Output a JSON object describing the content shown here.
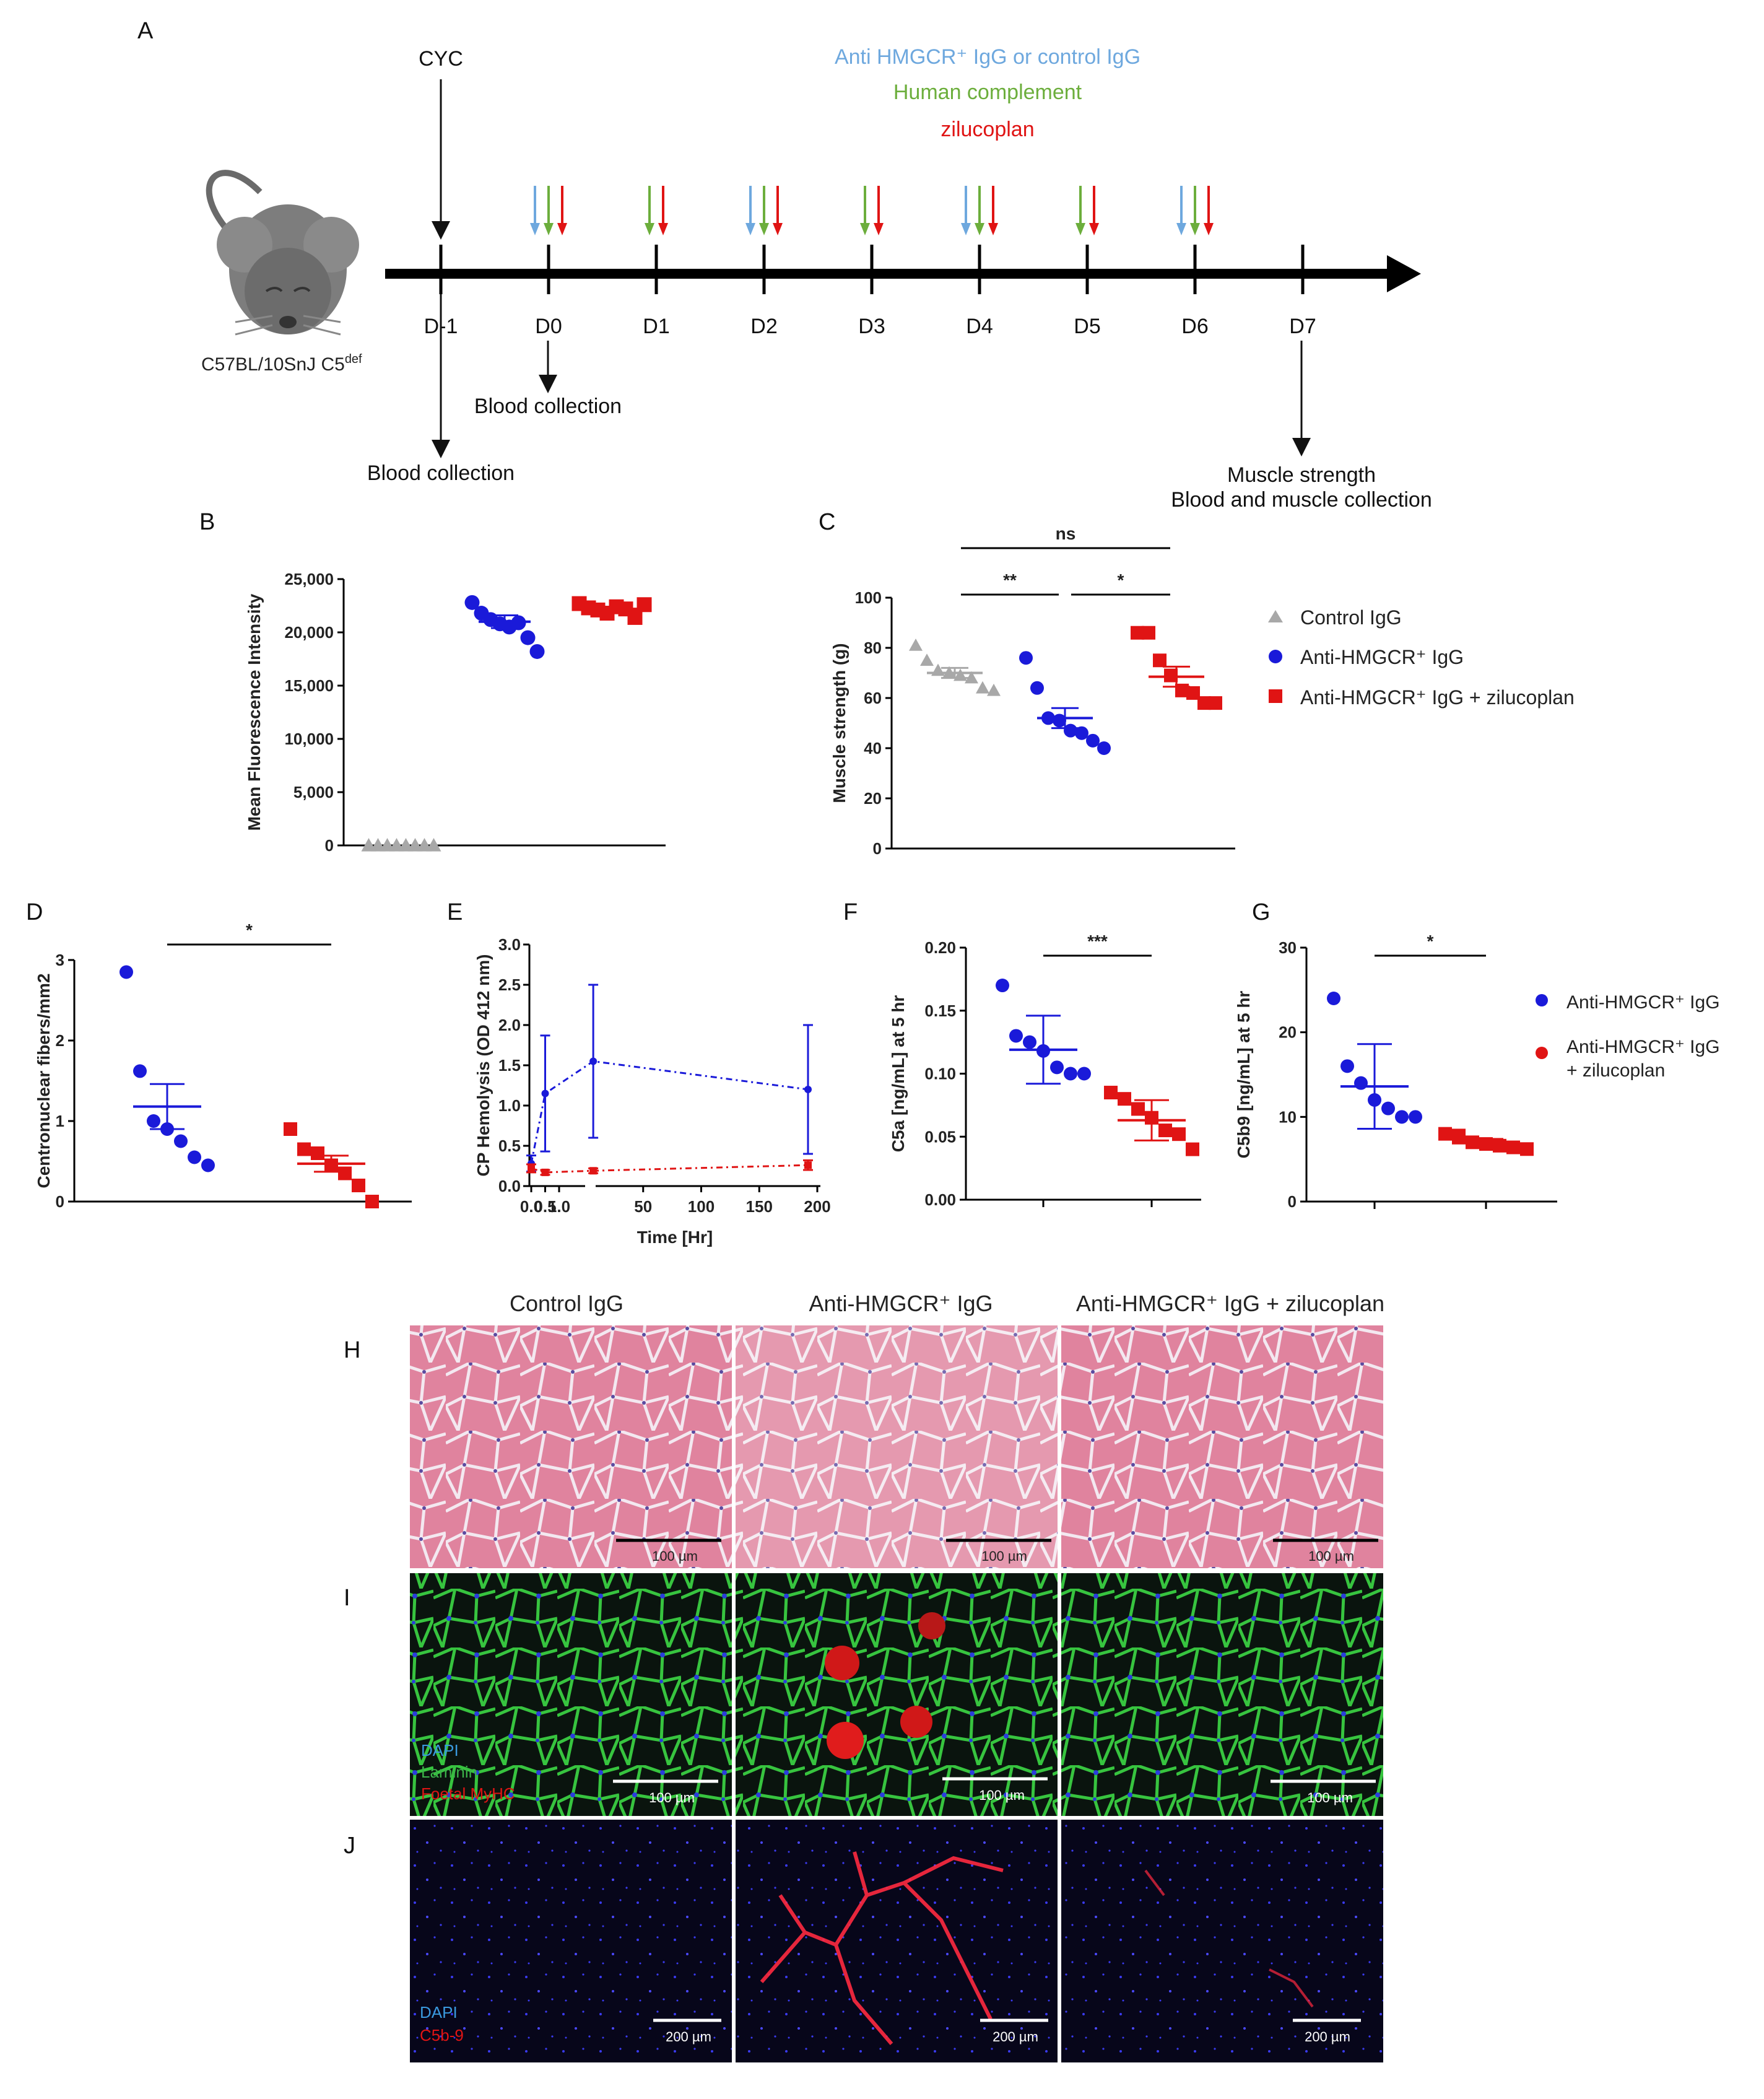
{
  "colors": {
    "control": "#a8a8a8",
    "anti": "#1a1ad9",
    "zilu": "#e01414",
    "ant_arrow": "#6ea8de",
    "comp_arrow": "#6cae3c",
    "zilu_arrow": "#e01414"
  },
  "panelA": {
    "label": "A",
    "strain": "C57BL/10SnJ C5",
    "strain_sup": "def",
    "cyc": "CYC",
    "legend": [
      "Anti HMGCR⁺ IgG or control IgG",
      "Human complement",
      "zilucoplan"
    ],
    "days": [
      "D-1",
      "D0",
      "D1",
      "D2",
      "D3",
      "D4",
      "D5",
      "D6",
      "D7"
    ],
    "injections": [
      [],
      [
        "ab",
        "comp",
        "zilu"
      ],
      [
        "comp",
        "zilu"
      ],
      [
        "ab",
        "comp",
        "zilu"
      ],
      [
        "comp",
        "zilu"
      ],
      [
        "ab",
        "comp",
        "zilu"
      ],
      [
        "comp",
        "zilu"
      ],
      [
        "ab",
        "comp",
        "zilu"
      ],
      []
    ],
    "blood_dm1": "Blood collection",
    "blood_d0": "Blood collection",
    "end1": "Muscle strength",
    "end2": "Blood and muscle collection"
  },
  "chart_data": [
    {
      "panel": "B",
      "type": "scatter",
      "ylabel": "Mean Fluorescence Intensity",
      "ylim": [
        0,
        25000
      ],
      "yticks": [
        "0",
        "5,000",
        "10,000",
        "15,000",
        "20,000",
        "25,000"
      ],
      "groups": [
        {
          "name": "Control IgG",
          "values": [
            0,
            0,
            0,
            0,
            0,
            0,
            0,
            0
          ],
          "mean": 0,
          "sem": 0
        },
        {
          "name": "Anti-HMGCR+ IgG",
          "values": [
            22800,
            21800,
            21200,
            20800,
            20500,
            20900,
            19500,
            18200
          ],
          "mean": 21000,
          "sem": 600
        },
        {
          "name": "Anti-HMGCR+ IgG + zilucoplan",
          "values": [
            22700,
            22300,
            22100,
            21800,
            22400,
            22200,
            21400,
            22600
          ],
          "mean": 22200,
          "sem": 200
        }
      ]
    },
    {
      "panel": "C",
      "type": "scatter",
      "ylabel": "Muscle strength (g)",
      "ylim": [
        0,
        100
      ],
      "yticks": [
        "0",
        "20",
        "40",
        "60",
        "80",
        "100"
      ],
      "groups": [
        {
          "name": "Control IgG",
          "values": [
            81,
            75,
            71,
            70,
            69,
            68,
            64,
            63
          ],
          "mean": 70,
          "sem": 2
        },
        {
          "name": "Anti-HMGCR+ IgG",
          "values": [
            76,
            64,
            52,
            51,
            47,
            46,
            43,
            40
          ],
          "mean": 52,
          "sem": 4
        },
        {
          "name": "Anti-HMGCR+ IgG + zilucoplan",
          "values": [
            86,
            86,
            75,
            69,
            63,
            62,
            58,
            58
          ],
          "mean": 68.5,
          "sem": 4
        }
      ],
      "significance": [
        {
          "label": "ns",
          "from": 0,
          "to": 2
        },
        {
          "label": "**",
          "from": 0,
          "to": 1
        },
        {
          "label": "*",
          "from": 1,
          "to": 2
        }
      ],
      "legend": [
        "Control IgG",
        "Anti-HMGCR⁺ IgG",
        "Anti-HMGCR⁺ IgG + zilucoplan"
      ]
    },
    {
      "panel": "D",
      "type": "scatter",
      "ylabel": "Centronuclear fibers/mm2",
      "ylim": [
        0,
        3
      ],
      "yticks": [
        "0",
        "1",
        "2",
        "3"
      ],
      "groups": [
        {
          "name": "Anti-HMGCR+ IgG",
          "values": [
            2.85,
            1.62,
            1.0,
            0.9,
            0.75,
            0.55,
            0.45
          ],
          "mean": 1.18,
          "sem": 0.28
        },
        {
          "name": "Anti-HMGCR+ IgG + zilucoplan",
          "values": [
            0.9,
            0.65,
            0.6,
            0.45,
            0.35,
            0.2,
            0.0
          ],
          "mean": 0.47,
          "sem": 0.1
        }
      ],
      "significance": [
        {
          "label": "*",
          "from": 0,
          "to": 1
        }
      ]
    },
    {
      "panel": "E",
      "type": "line",
      "ylabel": "CP Hemolysis (OD 412 nm)",
      "xlabel": "Time [Hr]",
      "ylim": [
        0,
        3
      ],
      "yticks": [
        "0.0",
        "0.5",
        "1.0",
        "1.5",
        "2.0",
        "2.5",
        "3.0"
      ],
      "xticks_left": [
        "0.0",
        "0.5",
        "1.0"
      ],
      "xticks_right": [
        "50",
        "100",
        "150",
        "200"
      ],
      "series": [
        {
          "name": "Anti-HMGCR+ IgG",
          "x": [
            0,
            0.5,
            7,
            192
          ],
          "y": [
            0.28,
            1.15,
            1.55,
            1.2
          ],
          "err": [
            0.1,
            0.72,
            0.95,
            0.8
          ]
        },
        {
          "name": "Anti-HMGCR+ IgG + zilucoplan",
          "x": [
            0,
            0.5,
            7,
            192
          ],
          "y": [
            0.22,
            0.17,
            0.19,
            0.26
          ],
          "err": [
            0.05,
            0.03,
            0.03,
            0.06
          ]
        }
      ]
    },
    {
      "panel": "F",
      "type": "scatter",
      "ylabel": "C5a [ng/mL] at 5 hr",
      "ylim": [
        0,
        0.2
      ],
      "yticks": [
        "0.00",
        "0.05",
        "0.10",
        "0.15",
        "0.20"
      ],
      "groups": [
        {
          "name": "Anti-HMGCR+ IgG",
          "values": [
            0.17,
            0.13,
            0.125,
            0.118,
            0.105,
            0.1,
            0.1
          ],
          "mean": 0.119,
          "sem": 0.027
        },
        {
          "name": "Anti-HMGCR+ IgG + zilucoplan",
          "values": [
            0.085,
            0.08,
            0.072,
            0.065,
            0.055,
            0.052,
            0.04
          ],
          "mean": 0.063,
          "sem": 0.016
        }
      ],
      "significance": [
        {
          "label": "***",
          "from": 0,
          "to": 1
        }
      ]
    },
    {
      "panel": "G",
      "type": "scatter",
      "ylabel": "C5b9 [ng/mL] at 5 hr",
      "ylim": [
        0,
        30
      ],
      "yticks": [
        "0",
        "10",
        "20",
        "30"
      ],
      "groups": [
        {
          "name": "Anti-HMGCR+ IgG",
          "values": [
            24,
            16,
            14,
            12,
            11,
            10,
            10
          ],
          "mean": 13.6,
          "sem": 5
        },
        {
          "name": "Anti-HMGCR+ IgG + zilucoplan",
          "values": [
            8,
            7.8,
            7,
            6.8,
            6.6,
            6.4,
            6.2
          ],
          "mean": 6.9,
          "sem": 0.5
        }
      ],
      "significance": [
        {
          "label": "*",
          "from": 0,
          "to": 1
        }
      ],
      "legend": [
        "Anti-HMGCR⁺ IgG",
        "Anti-HMGCR⁺ IgG",
        "+ zilucoplan"
      ]
    }
  ],
  "histology": {
    "columns": [
      "Control IgG",
      "Anti-HMGCR⁺ IgG",
      "Anti-HMGCR⁺ IgG + zilucoplan"
    ],
    "rows": [
      {
        "label": "H",
        "scalebars": [
          "100 µm",
          "100 µm",
          "100 µm"
        ]
      },
      {
        "label": "I",
        "scalebars": [
          "100 µm",
          "100 µm",
          "100 µm"
        ],
        "channels": [
          "DAPI",
          "Laminin",
          "Foetal MyHC"
        ]
      },
      {
        "label": "J",
        "scalebars": [
          "200 µm",
          "200 µm",
          "200 µm"
        ],
        "channels": [
          "DAPI",
          "C5b-9"
        ]
      }
    ]
  },
  "panel_labels": {
    "B": "B",
    "C": "C",
    "D": "D",
    "E": "E",
    "F": "F",
    "G": "G"
  }
}
